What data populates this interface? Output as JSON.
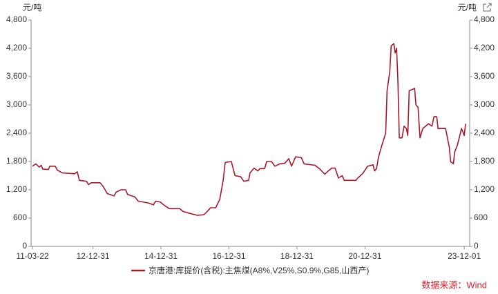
{
  "chart_data": {
    "type": "line",
    "y_unit": "元/吨",
    "y2_unit": "元/吨",
    "source": "数据来源：Wind",
    "x": [
      2011.22,
      2011.32,
      2011.42,
      2011.48,
      2011.52,
      2011.69,
      2011.73,
      2011.89,
      2011.95,
      2012.09,
      2012.46,
      2012.54,
      2012.6,
      2012.81,
      2012.87,
      2012.95,
      2013.21,
      2013.31,
      2013.42,
      2013.62,
      2013.68,
      2013.82,
      2013.96,
      2014.02,
      2014.23,
      2014.33,
      2014.63,
      2014.78,
      2014.84,
      2014.98,
      2015.08,
      2015.24,
      2015.55,
      2015.65,
      2015.85,
      2016.06,
      2016.26,
      2016.36,
      2016.46,
      2016.61,
      2016.73,
      2016.83,
      2016.89,
      2017.07,
      2017.18,
      2017.34,
      2017.44,
      2017.58,
      2017.62,
      2017.74,
      2017.85,
      2017.91,
      2018.05,
      2018.11,
      2018.25,
      2018.35,
      2018.5,
      2018.64,
      2018.76,
      2018.84,
      2018.96,
      2019.13,
      2019.21,
      2019.53,
      2019.66,
      2019.82,
      2019.92,
      2020.02,
      2020.12,
      2020.22,
      2020.33,
      2020.39,
      2020.73,
      2020.79,
      2020.94,
      2021.08,
      2021.24,
      2021.28,
      2021.34,
      2021.4,
      2021.5,
      2021.61,
      2021.65,
      2021.73,
      2021.77,
      2021.85,
      2021.89,
      2021.93,
      2021.97,
      2022.01,
      2022.09,
      2022.15,
      2022.22,
      2022.26,
      2022.3,
      2022.46,
      2022.5,
      2022.56,
      2022.62,
      2022.7,
      2022.87,
      2022.97,
      2023.03,
      2023.11,
      2023.15,
      2023.37,
      2023.48,
      2023.52,
      2023.6,
      2023.64,
      2023.72,
      2023.84,
      2023.92,
      2023.96
    ],
    "series": [
      {
        "name": "京唐港:库提价(含税):主焦煤(A8%,V25%,S0.9%,G85,山西产)",
        "color": "#a8182a",
        "values": [
          1700,
          1750,
          1680,
          1720,
          1640,
          1630,
          1700,
          1700,
          1620,
          1560,
          1540,
          1580,
          1400,
          1380,
          1310,
          1350,
          1350,
          1260,
          1120,
          1070,
          1150,
          1200,
          1200,
          1100,
          1050,
          960,
          920,
          880,
          960,
          940,
          880,
          800,
          800,
          740,
          700,
          660,
          670,
          740,
          820,
          820,
          1000,
          1400,
          1780,
          1800,
          1500,
          1480,
          1380,
          1400,
          1560,
          1660,
          1600,
          1650,
          1650,
          1800,
          1800,
          1700,
          1750,
          1760,
          1860,
          1700,
          1900,
          1880,
          1750,
          1720,
          1650,
          1530,
          1600,
          1660,
          1660,
          1450,
          1500,
          1400,
          1400,
          1450,
          1550,
          1700,
          1730,
          1600,
          1650,
          1900,
          2150,
          2400,
          3300,
          3700,
          4250,
          4300,
          4100,
          4200,
          3500,
          2300,
          2300,
          2550,
          2500,
          2350,
          3300,
          3350,
          3000,
          2950,
          2300,
          2500,
          2600,
          2550,
          2750,
          2750,
          2500,
          2500,
          2100,
          1800,
          1750,
          2000,
          2150,
          2500,
          2350,
          2600
        ]
      }
    ],
    "xlim": [
      2011.18,
      2024.08
    ],
    "xticks": [
      {
        "value": 2011.22,
        "label": "11-03-22"
      },
      {
        "value": 2013.0,
        "label": "12-12-31"
      },
      {
        "value": 2015.0,
        "label": "14-12-31"
      },
      {
        "value": 2017.0,
        "label": "16-12-31"
      },
      {
        "value": 2019.0,
        "label": "18-12-31"
      },
      {
        "value": 2021.0,
        "label": "20-12-31"
      },
      {
        "value": 2023.92,
        "label": "23-12-01"
      }
    ],
    "ylim": [
      0,
      4800
    ],
    "yticks": [
      0,
      600,
      {
        "value": 1200,
        "label": "1,200"
      },
      {
        "value": 1800,
        "label": "1,800"
      },
      {
        "value": 2400,
        "label": "2,400"
      },
      {
        "value": 3000,
        "label": "3,000"
      },
      {
        "value": 3600,
        "label": "3,600"
      },
      {
        "value": 4200,
        "label": "4,200"
      },
      {
        "value": 4800,
        "label": "4,800"
      }
    ],
    "y2lim": [
      0,
      4800
    ],
    "y2ticks": [
      0,
      600,
      {
        "value": 1200,
        "label": "1,200"
      },
      {
        "value": 1800,
        "label": "1,800"
      },
      {
        "value": 2400,
        "label": "2,400"
      },
      {
        "value": 3000,
        "label": "3,000"
      },
      {
        "value": 3600,
        "label": "3,600"
      },
      {
        "value": 4200,
        "label": "4,200"
      },
      {
        "value": 4800,
        "label": "4,800"
      }
    ],
    "grid": false
  }
}
